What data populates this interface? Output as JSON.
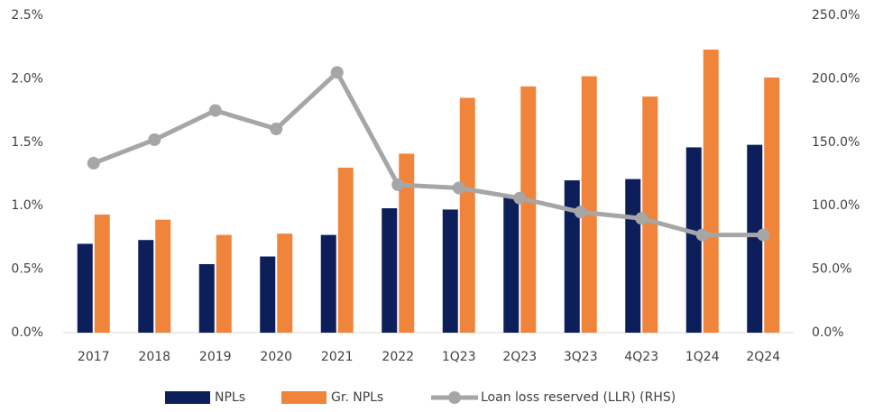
{
  "chart_data": {
    "type": "bar",
    "categories": [
      "2017",
      "2018",
      "2019",
      "2020",
      "2021",
      "2022",
      "1Q23",
      "2Q23",
      "3Q23",
      "4Q23",
      "1Q24",
      "2Q24"
    ],
    "series": [
      {
        "name": "NPLs",
        "color": "#0c1f5b",
        "values": [
          0.7,
          0.73,
          0.54,
          0.6,
          0.77,
          0.98,
          0.97,
          1.07,
          1.2,
          1.21,
          1.46,
          1.48
        ]
      },
      {
        "name": "Gr. NPLs",
        "color": "#f0843a",
        "values": [
          0.93,
          0.89,
          0.77,
          0.78,
          1.3,
          1.41,
          1.85,
          1.94,
          2.02,
          1.86,
          2.23,
          2.01
        ]
      },
      {
        "name": "Loan loss reserved (LLR) (RHS)",
        "color": "#a6a6a6",
        "type": "line",
        "axis": "y2",
        "values": [
          133.5,
          152,
          175,
          160.5,
          205,
          116.5,
          114,
          106,
          95,
          90,
          77,
          77
        ]
      }
    ],
    "ylim": [
      0,
      2.5
    ],
    "yticks": [
      {
        "value": 0,
        "label": "0.0%"
      },
      {
        "value": 0.5,
        "label": "0.5%"
      },
      {
        "value": 1,
        "label": "1.0%"
      },
      {
        "value": 1.5,
        "label": "1.5%"
      },
      {
        "value": 2,
        "label": "2.0%"
      },
      {
        "value": 2.5,
        "label": "2.5%"
      }
    ],
    "y2lim": [
      0,
      250
    ],
    "y2ticks": [
      {
        "value": 0,
        "label": "0.0%"
      },
      {
        "value": 50,
        "label": "50.0%"
      },
      {
        "value": 100,
        "label": "100.0%"
      },
      {
        "value": 150,
        "label": "150.0%"
      },
      {
        "value": 200,
        "label": "200.0%"
      },
      {
        "value": 250,
        "label": "250.0%"
      }
    ],
    "legend": "bottom"
  }
}
